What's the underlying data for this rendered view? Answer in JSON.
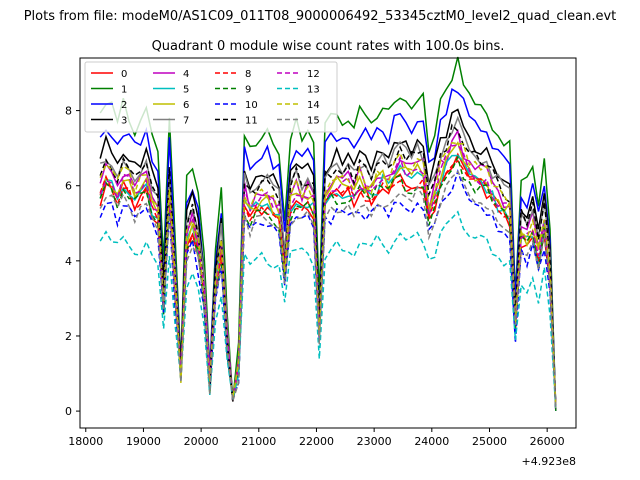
{
  "figure": {
    "suptitle": "Plots from file: modeM0/AS1C09_011T08_9000006492_53345cztM0_level2_quad_clean.evt"
  },
  "chart_data": {
    "type": "line",
    "title": "Quadrant 0 module wise count rates with 100.0s bins.",
    "xlabel": "",
    "ylabel": "",
    "offset_text": "+4.923e8",
    "xlim": [
      17900,
      26500
    ],
    "ylim": [
      -0.45,
      9.4
    ],
    "x_ticks": [
      18000,
      19000,
      20000,
      21000,
      22000,
      23000,
      24000,
      25000,
      26000
    ],
    "y_ticks": [
      0,
      2,
      4,
      6,
      8
    ],
    "legend_placement": "top-left",
    "legend_columns": 4,
    "grid": false,
    "x": [
      18250,
      18350,
      18450,
      18550,
      18650,
      18750,
      18850,
      18950,
      19050,
      19150,
      19250,
      19350,
      19450,
      19550,
      19650,
      19750,
      19850,
      19950,
      20050,
      20150,
      20250,
      20350,
      20450,
      20550,
      20650,
      20750,
      20850,
      20950,
      21050,
      21150,
      21250,
      21350,
      21450,
      21550,
      21650,
      21750,
      21850,
      21950,
      22050,
      22150,
      22250,
      22350,
      22450,
      22550,
      22650,
      22750,
      22850,
      22950,
      23050,
      23150,
      23250,
      23350,
      23450,
      23550,
      23650,
      23750,
      23850,
      23950,
      24050,
      24150,
      24250,
      24350,
      24450,
      24550,
      24650,
      24750,
      24850,
      24950,
      25050,
      25150,
      25250,
      25350,
      25450,
      25550,
      25650,
      25750,
      25850,
      25950,
      26050,
      26150
    ],
    "reference": [
      6.2,
      6.6,
      6.4,
      6.1,
      6.5,
      6.3,
      6.0,
      6.2,
      6.3,
      5.8,
      5.6,
      3.0,
      6.1,
      3.5,
      1.0,
      4.8,
      5.2,
      4.6,
      3.3,
      0.8,
      3.5,
      4.6,
      2.0,
      0.3,
      1.2,
      6.0,
      5.6,
      5.8,
      5.9,
      5.9,
      5.7,
      5.5,
      4.0,
      5.8,
      6.1,
      5.9,
      6.0,
      5.8,
      2.2,
      6.0,
      6.2,
      6.3,
      6.2,
      6.3,
      6.1,
      6.4,
      6.3,
      6.1,
      6.4,
      6.5,
      6.3,
      6.6,
      6.8,
      6.6,
      6.5,
      6.7,
      6.6,
      5.6,
      6.0,
      6.6,
      6.9,
      7.2,
      7.4,
      7.0,
      6.7,
      6.6,
      6.5,
      6.4,
      6.1,
      5.9,
      5.7,
      5.6,
      2.5,
      5.0,
      4.8,
      5.2,
      4.4,
      5.3,
      3.8,
      0.05
    ],
    "series": [
      {
        "name": "0",
        "color": "#ff0000",
        "dash": false,
        "scale": 0.93,
        "offset": -0.1
      },
      {
        "name": "1",
        "color": "#008000",
        "dash": false,
        "scale": 1.22,
        "offset": 0.2
      },
      {
        "name": "2",
        "color": "#0000ff",
        "dash": false,
        "scale": 1.16,
        "offset": 0.0
      },
      {
        "name": "3",
        "color": "#000000",
        "dash": false,
        "scale": 1.08,
        "offset": 0.0
      },
      {
        "name": "4",
        "color": "#bf00bf",
        "dash": false,
        "scale": 0.97,
        "offset": 0.1
      },
      {
        "name": "5",
        "color": "#00bfbf",
        "dash": false,
        "scale": 0.95,
        "offset": -0.1
      },
      {
        "name": "6",
        "color": "#bfbf00",
        "dash": false,
        "scale": 0.99,
        "offset": -0.2
      },
      {
        "name": "7",
        "color": "#808080",
        "dash": false,
        "scale": 1.02,
        "offset": 0.1
      },
      {
        "name": "8",
        "color": "#ff0000",
        "dash": true,
        "scale": 0.92,
        "offset": 0.0
      },
      {
        "name": "9",
        "color": "#008000",
        "dash": true,
        "scale": 0.94,
        "offset": -0.2
      },
      {
        "name": "10",
        "color": "#0000ff",
        "dash": true,
        "scale": 0.87,
        "offset": -0.2
      },
      {
        "name": "11",
        "color": "#000000",
        "dash": true,
        "scale": 1.03,
        "offset": 0.0
      },
      {
        "name": "12",
        "color": "#bf00bf",
        "dash": true,
        "scale": 0.96,
        "offset": 0.0
      },
      {
        "name": "13",
        "color": "#00bfbf",
        "dash": true,
        "scale": 0.7,
        "offset": 0.0
      },
      {
        "name": "14",
        "color": "#bfbf00",
        "dash": true,
        "scale": 1.0,
        "offset": -0.1
      },
      {
        "name": "15",
        "color": "#808080",
        "dash": true,
        "scale": 0.88,
        "offset": -0.1
      }
    ]
  }
}
